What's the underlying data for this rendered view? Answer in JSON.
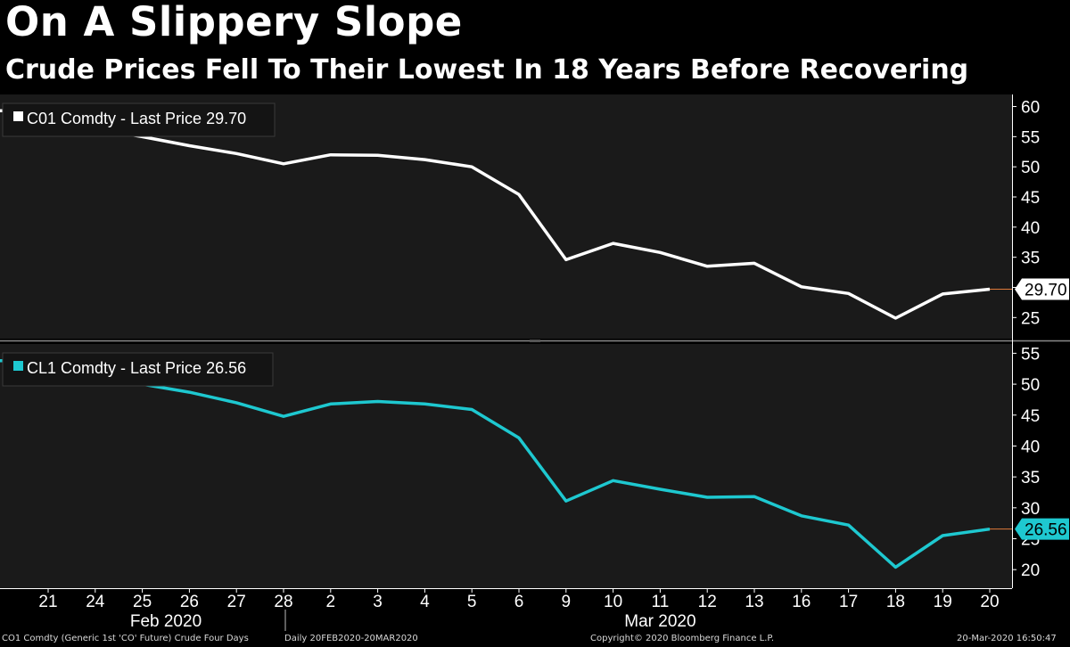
{
  "header": {
    "title": "On A Slippery Slope",
    "subtitle": "Crude Prices Fell To Their Lowest In 18 Years Before Recovering"
  },
  "chart_data": {
    "type": "line",
    "x": [
      "21",
      "24",
      "25",
      "26",
      "27",
      "28",
      "2",
      "3",
      "4",
      "5",
      "6",
      "9",
      "10",
      "11",
      "12",
      "13",
      "16",
      "17",
      "18",
      "19",
      "20"
    ],
    "months": [
      {
        "label": "Feb 2020",
        "from": 0,
        "to": 5
      },
      {
        "label": "Mar 2020",
        "from": 6,
        "to": 20
      }
    ],
    "panels": [
      {
        "legend": "C01 Comdty - Last Price 29.70",
        "last_label": "29.70",
        "color": "#ffffff",
        "label_text_color": "#000000",
        "ylim": [
          21.5,
          62
        ],
        "ticks": [
          25,
          30,
          35,
          40,
          45,
          50,
          55,
          60
        ],
        "values": [
          59.3,
          56.3,
          55.0,
          53.5,
          52.2,
          50.5,
          52.0,
          51.9,
          51.2,
          50.0,
          45.4,
          34.6,
          37.3,
          35.8,
          33.5,
          34.0,
          30.1,
          29.0,
          24.9,
          28.9,
          29.7
        ]
      },
      {
        "legend": "CL1 Comdty - Last Price 26.56",
        "last_label": "26.56",
        "color": "#1ec8d0",
        "label_text_color": "#000000",
        "ylim": [
          17,
          56.5
        ],
        "ticks": [
          20,
          25,
          30,
          35,
          40,
          45,
          50,
          55
        ],
        "values": [
          53.8,
          51.4,
          50.0,
          48.7,
          47.0,
          44.8,
          46.8,
          47.2,
          46.8,
          45.9,
          41.3,
          31.1,
          34.4,
          33.0,
          31.7,
          31.8,
          28.7,
          27.2,
          20.4,
          25.5,
          26.56
        ]
      }
    ]
  },
  "footer": {
    "left": "CO1 Comdty (Generic 1st 'CO' Future) Crude Four Days",
    "period": "Daily 20FEB2020-20MAR2020",
    "copyright": "Copyright© 2020 Bloomberg Finance L.P.",
    "timestamp": "20-Mar-2020 16:50:47"
  }
}
